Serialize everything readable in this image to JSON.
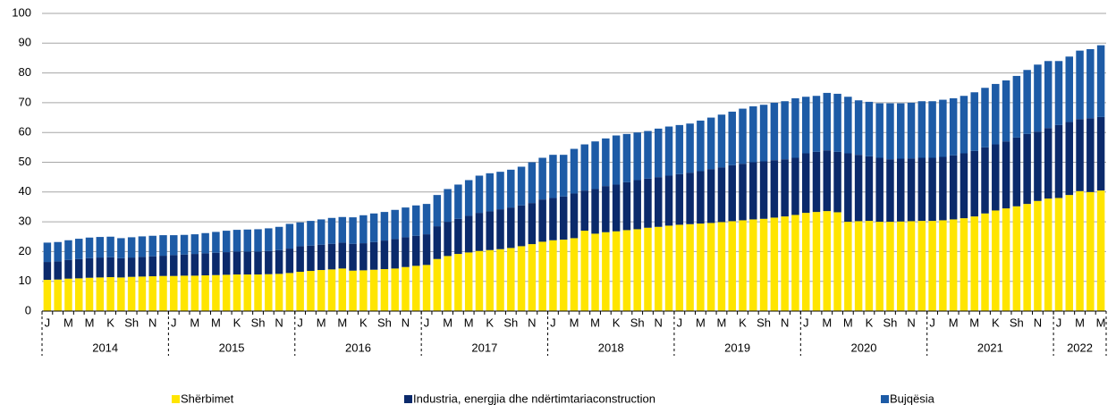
{
  "chart_data": {
    "type": "stacked_bar",
    "categories": [
      "J",
      null,
      "M",
      null,
      "M",
      null,
      "K",
      null,
      "Sh",
      null,
      "N",
      null,
      "J",
      null,
      "M",
      null,
      "M",
      null,
      "K",
      null,
      "Sh",
      null,
      "N",
      null,
      "J",
      null,
      "M",
      null,
      "M",
      null,
      "K",
      null,
      "Sh",
      null,
      "N",
      null,
      "J",
      null,
      "M",
      null,
      "M",
      null,
      "K",
      null,
      "Sh",
      null,
      "N",
      null,
      "J",
      null,
      "M",
      null,
      "M",
      null,
      "K",
      null,
      "Sh",
      null,
      "N",
      null,
      "J",
      null,
      "M",
      null,
      "M",
      null,
      "K",
      null,
      "Sh",
      null,
      "N",
      null,
      "J",
      null,
      "M",
      null,
      "M",
      null,
      "K",
      null,
      "Sh",
      null,
      "N",
      null,
      "J",
      null,
      "M",
      null,
      "M",
      null,
      "K",
      null,
      "Sh",
      null,
      "N",
      null,
      "J",
      null,
      "M",
      null,
      "M"
    ],
    "years": [
      "2014",
      "2015",
      "2016",
      "2017",
      "2018",
      "2019",
      "2020",
      "2021",
      "2022"
    ],
    "series": [
      {
        "name": "Shërbimet",
        "color": "#ffe500",
        "values": [
          10.5,
          10.6,
          10.9,
          11.0,
          11.2,
          11.3,
          11.4,
          11.3,
          11.5,
          11.6,
          11.7,
          11.8,
          11.8,
          11.9,
          11.9,
          12.0,
          12.1,
          12.2,
          12.3,
          12.3,
          12.3,
          12.4,
          12.5,
          12.8,
          13.2,
          13.5,
          13.8,
          14.0,
          14.3,
          13.6,
          13.7,
          13.9,
          14.1,
          14.3,
          14.8,
          15.2,
          15.5,
          17.5,
          18.5,
          19.2,
          19.7,
          20.2,
          20.5,
          20.8,
          21.2,
          21.8,
          22.5,
          23.3,
          23.8,
          24.0,
          24.5,
          27.0,
          26.0,
          26.5,
          26.8,
          27.2,
          27.5,
          28.0,
          28.3,
          28.7,
          29.0,
          29.2,
          29.4,
          29.6,
          29.9,
          30.2,
          30.5,
          30.8,
          31.0,
          31.4,
          31.8,
          32.3,
          33.0,
          33.3,
          33.6,
          33.2,
          30.0,
          30.2,
          30.3,
          30.0,
          30.0,
          30.1,
          30.2,
          30.3,
          30.3,
          30.5,
          30.8,
          31.2,
          31.8,
          32.8,
          33.8,
          34.5,
          35.2,
          36.0,
          37.0,
          37.8,
          38.0,
          39.0,
          40.3,
          40.0,
          40.5
        ]
      },
      {
        "name": "Industria, energjia dhe ndërtimtariaconstruction",
        "color": "#0b2a6b",
        "values": [
          6.0,
          6.1,
          6.3,
          6.5,
          6.6,
          6.7,
          6.7,
          6.5,
          6.5,
          6.6,
          6.7,
          6.8,
          7.0,
          7.1,
          7.3,
          7.4,
          7.5,
          7.6,
          7.7,
          7.7,
          7.7,
          7.8,
          8.0,
          8.2,
          8.6,
          8.5,
          8.5,
          8.6,
          8.7,
          9.0,
          9.1,
          9.3,
          9.6,
          9.9,
          10.0,
          10.1,
          10.3,
          11.0,
          11.5,
          11.8,
          12.3,
          12.8,
          13.0,
          13.4,
          13.6,
          13.7,
          13.8,
          14.2,
          14.2,
          14.5,
          15.0,
          13.5,
          15.0,
          15.5,
          15.7,
          16.1,
          16.5,
          16.5,
          16.7,
          16.8,
          17.0,
          17.3,
          17.6,
          18.1,
          18.4,
          18.8,
          19.0,
          19.2,
          19.3,
          19.3,
          19.2,
          19.2,
          20.0,
          20.2,
          20.4,
          20.3,
          23.0,
          22.3,
          21.7,
          21.5,
          21.0,
          21.1,
          21.1,
          21.2,
          21.2,
          21.3,
          21.5,
          21.8,
          22.0,
          22.2,
          22.2,
          22.5,
          23.1,
          23.5,
          23.3,
          23.7,
          24.5,
          24.5,
          24.2,
          24.8,
          24.7
        ]
      },
      {
        "name": "Bujqësia",
        "color": "#1d5ba6",
        "values": [
          6.5,
          6.5,
          6.6,
          6.8,
          6.9,
          6.9,
          6.9,
          6.7,
          6.8,
          6.9,
          6.9,
          6.9,
          6.7,
          6.6,
          6.6,
          6.8,
          7.0,
          7.2,
          7.3,
          7.4,
          7.5,
          7.6,
          7.8,
          8.3,
          8.0,
          8.3,
          8.5,
          8.7,
          8.6,
          8.9,
          9.4,
          9.6,
          9.6,
          9.8,
          10.0,
          10.2,
          10.2,
          10.5,
          11.0,
          11.5,
          12.0,
          12.5,
          12.8,
          12.6,
          12.7,
          13.0,
          13.7,
          14.0,
          14.5,
          14.0,
          15.0,
          15.5,
          16.0,
          16.0,
          16.5,
          16.2,
          16.0,
          16.0,
          16.3,
          16.5,
          16.5,
          16.5,
          17.0,
          17.3,
          17.7,
          18.0,
          18.5,
          18.8,
          19.0,
          19.3,
          19.5,
          20.0,
          19.0,
          18.8,
          19.3,
          19.5,
          19.0,
          18.3,
          18.3,
          18.3,
          18.8,
          18.6,
          18.7,
          19.0,
          19.0,
          19.2,
          19.2,
          19.3,
          19.7,
          20.0,
          20.3,
          20.5,
          20.7,
          21.5,
          22.5,
          22.5,
          21.5,
          22.0,
          23.0,
          23.2,
          24.1
        ]
      }
    ],
    "ylim": [
      0,
      100
    ],
    "yticks": [
      0,
      10,
      20,
      30,
      40,
      50,
      60,
      70,
      80,
      90,
      100
    ],
    "grid": true,
    "legend": "bottom"
  }
}
